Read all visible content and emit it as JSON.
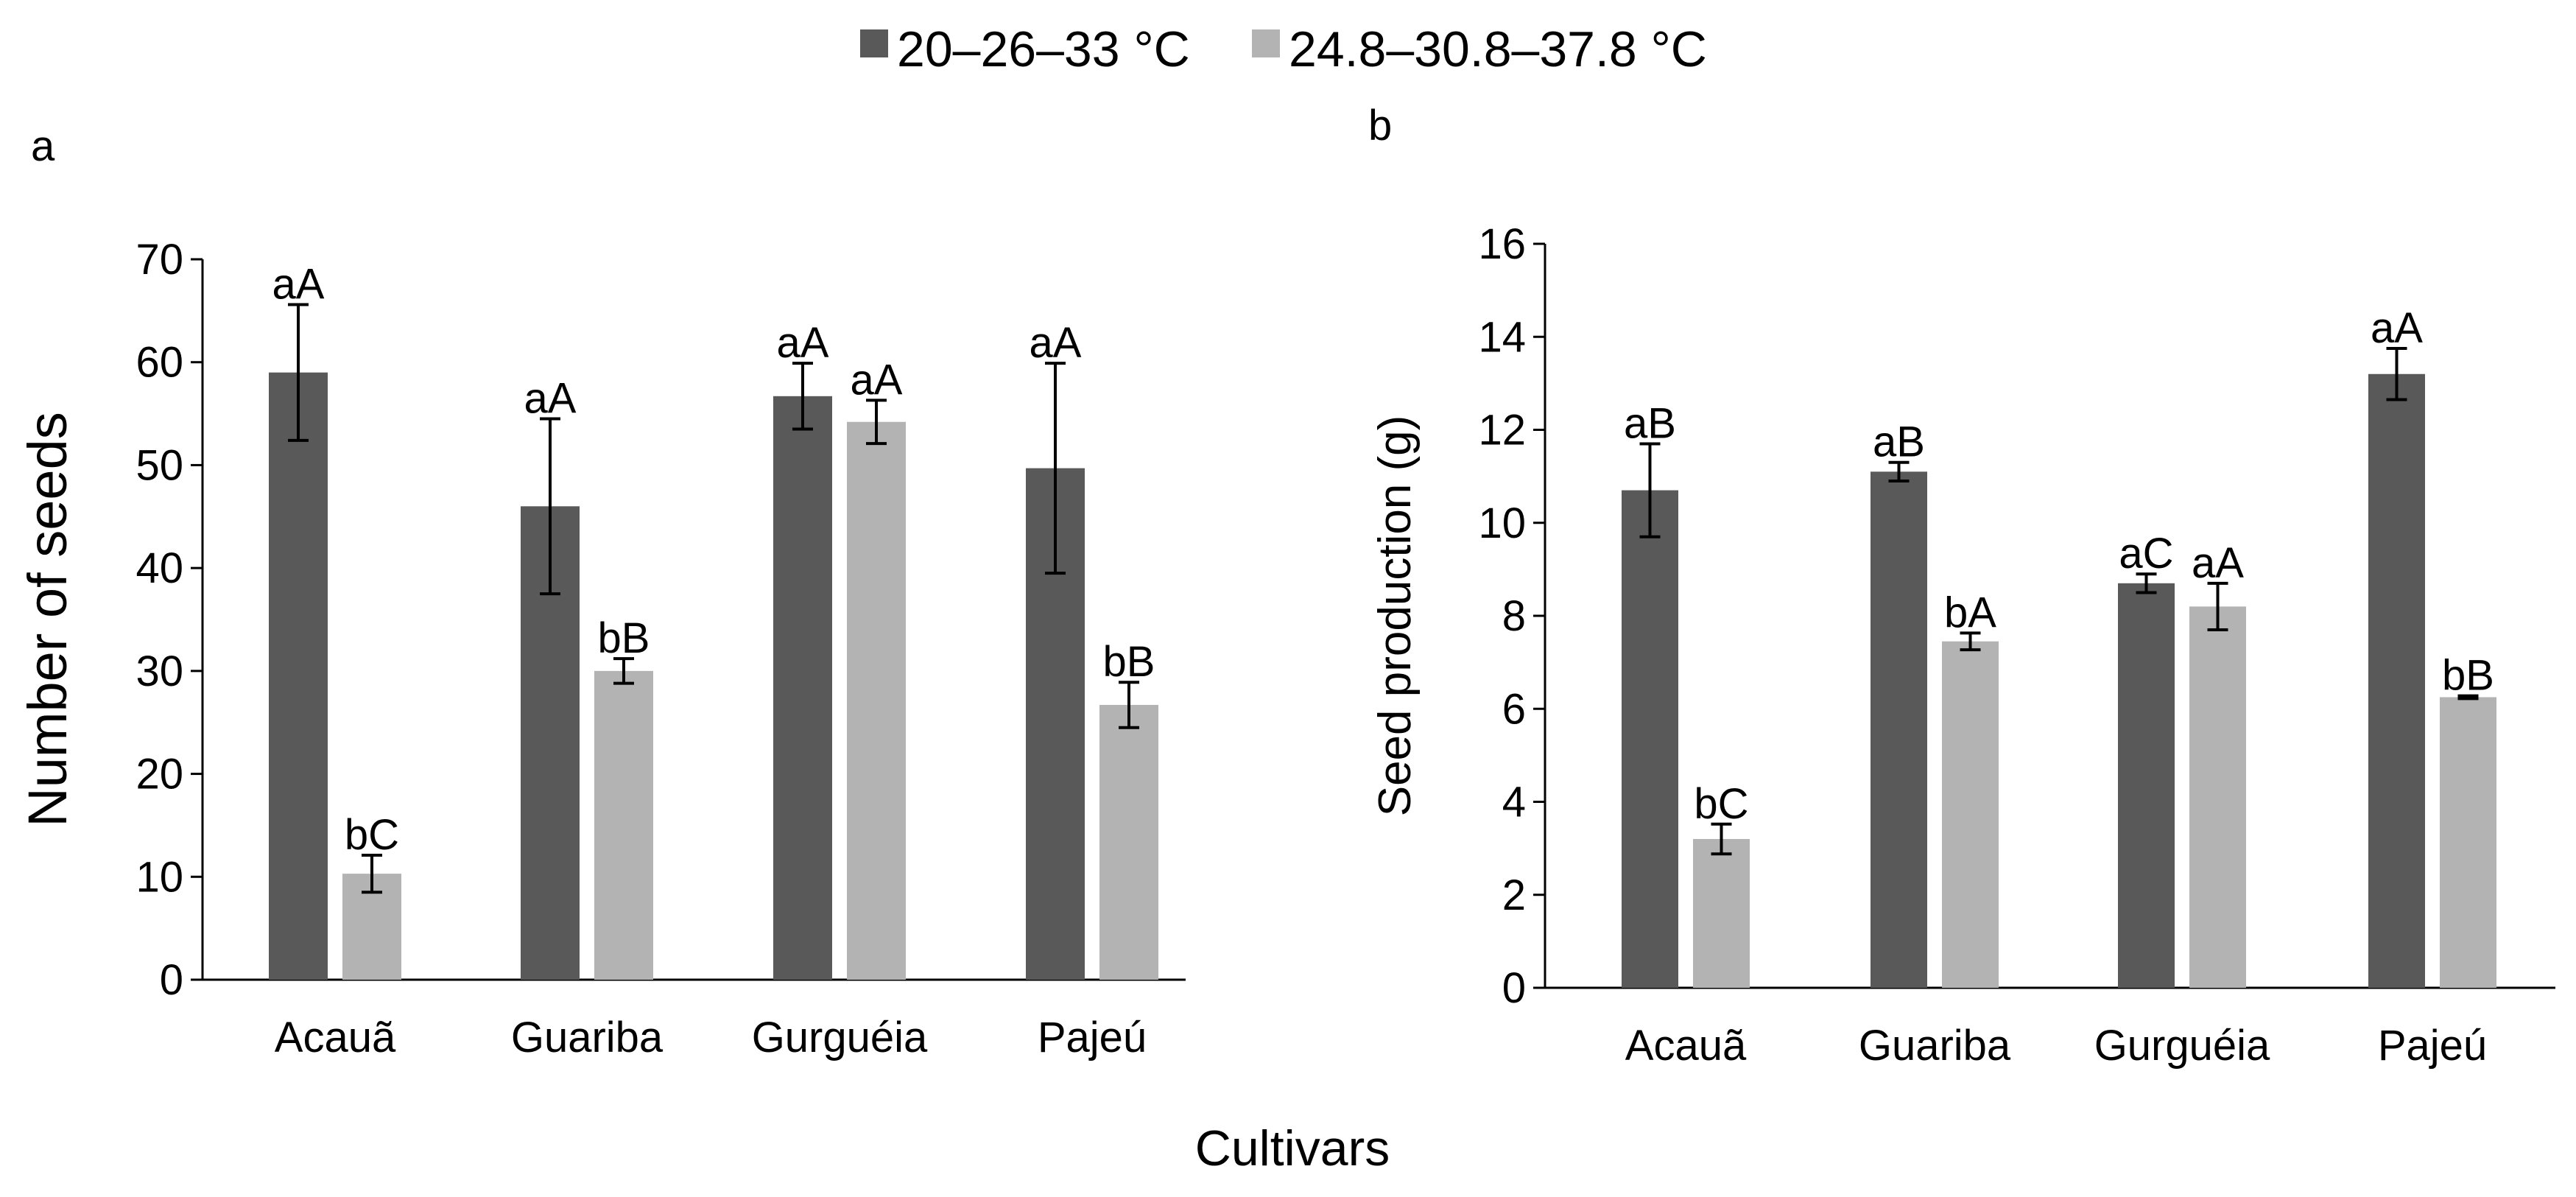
{
  "legend": {
    "series": [
      {
        "name": "20–26–33 °C",
        "color": "#595959"
      },
      {
        "name": "24.8–30.8–37.8 °C",
        "color": "#b3b3b3"
      }
    ]
  },
  "shared_xlabel": "Cultivars",
  "chart_data": [
    {
      "panel": "a",
      "type": "bar",
      "title": "",
      "xlabel": "",
      "ylabel": "Number of seeds",
      "ylim": [
        0,
        70
      ],
      "yticks": [
        0,
        10,
        20,
        30,
        40,
        50,
        60,
        70
      ],
      "categories": [
        "Acauã",
        "Guariba",
        "Gurguéia",
        "Pajeú"
      ],
      "series": [
        {
          "name": "20–26–33 °C",
          "values": [
            59,
            46,
            56.7,
            49.7
          ],
          "errors": [
            6.6,
            8.5,
            3.2,
            10.2
          ],
          "labels": [
            "aA",
            "aA",
            "aA",
            "aA"
          ]
        },
        {
          "name": "24.8–30.8–37.8 °C",
          "values": [
            10.3,
            30,
            54.2,
            26.7
          ],
          "errors": [
            1.8,
            1.2,
            2.1,
            2.2
          ],
          "labels": [
            "bC",
            "bB",
            "aA",
            "bB"
          ]
        }
      ]
    },
    {
      "panel": "b",
      "type": "bar",
      "title": "",
      "xlabel": "",
      "ylabel": "Seed production (g)",
      "ylim": [
        0,
        16
      ],
      "yticks": [
        0,
        2,
        4,
        6,
        8,
        10,
        12,
        14,
        16
      ],
      "categories": [
        "Acauã",
        "Guariba",
        "Gurguéia",
        "Pajeú"
      ],
      "series": [
        {
          "name": "20–26–33 °C",
          "values": [
            10.7,
            11.1,
            8.7,
            13.2
          ],
          "errors": [
            1.0,
            0.2,
            0.2,
            0.55
          ],
          "labels": [
            "aB",
            "aB",
            "aC",
            "aA"
          ]
        },
        {
          "name": "24.8–30.8–37.8 °C",
          "values": [
            3.2,
            7.45,
            8.2,
            6.25
          ],
          "errors": [
            0.32,
            0.18,
            0.5,
            0.03
          ],
          "labels": [
            "bC",
            "bA",
            "aA",
            "bB"
          ]
        }
      ]
    }
  ]
}
